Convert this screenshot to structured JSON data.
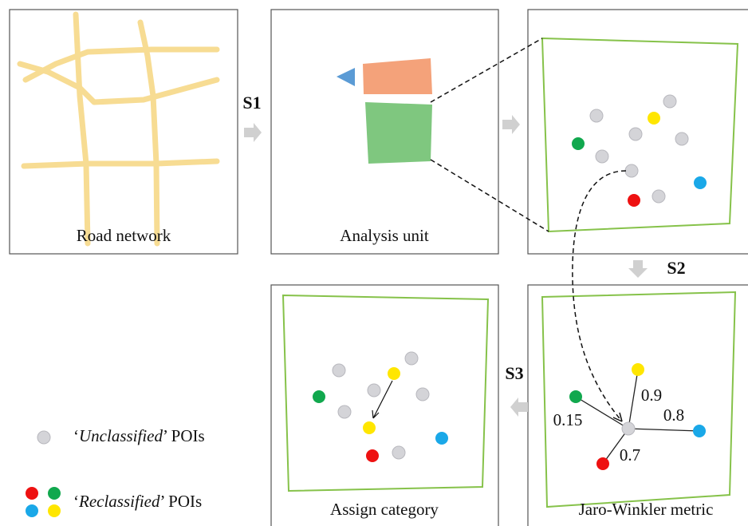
{
  "panels": {
    "road": {
      "label": "Road network"
    },
    "unit": {
      "label": "Analysis unit"
    },
    "assign": {
      "label": "Assign category"
    },
    "metric": {
      "label": "Jaro-Winkler metric"
    }
  },
  "steps": [
    "S1",
    "S2",
    "S3"
  ],
  "weights": {
    "green": 0.15,
    "yellow": 0.9,
    "blue": 0.8,
    "red": 0.7
  },
  "legend": [
    {
      "open": "‘",
      "term": "Unclassified",
      "close": "’ POIs"
    },
    {
      "open": "‘",
      "term": "Reclassified",
      "close": "’ POIs"
    }
  ]
}
